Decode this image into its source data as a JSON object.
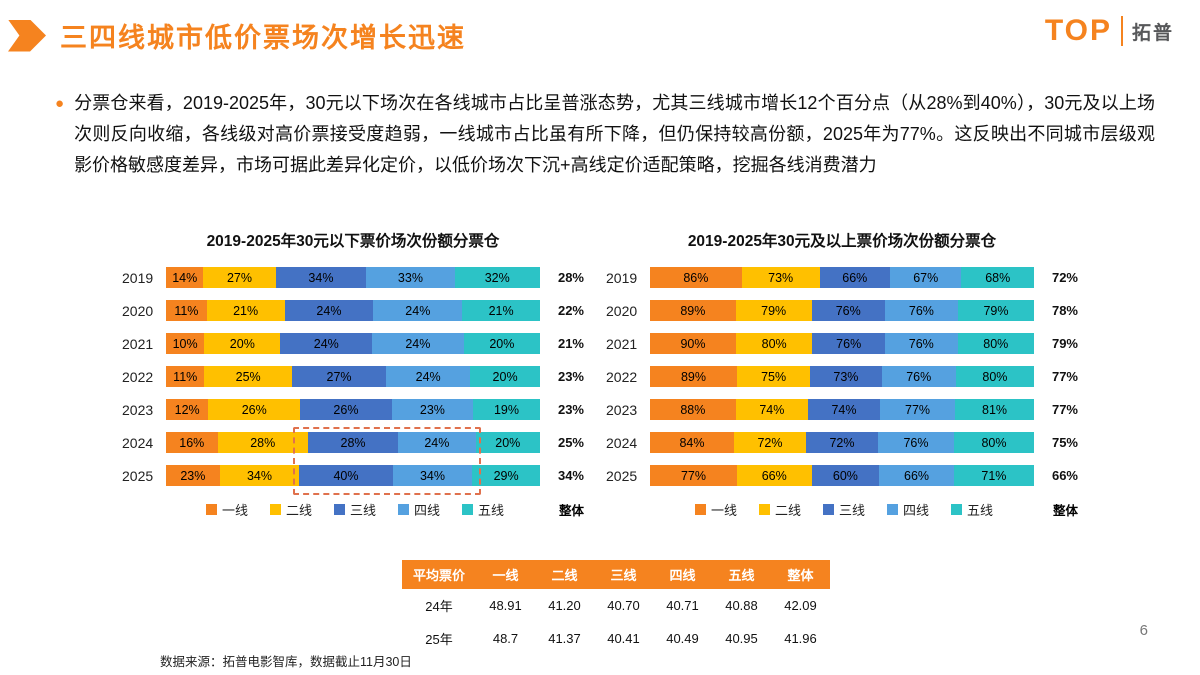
{
  "header": {
    "title": "三四线城市低价票场次增长迅速"
  },
  "logo": {
    "name": "TOP",
    "brand": "拓普"
  },
  "body": {
    "bullet": "●",
    "text": "分票仓来看，2019-2025年，30元以下场次在各线城市占比呈普涨态势，尤其三线城市增长12个百分点（从28%到40%），30元及以上场次则反向收缩，各线级对高价票接受度趋弱，一线城市占比虽有所下降，但仍保持较高份额，2025年为77%。这反映出不同城市层级观影价格敏感度差异，市场可据此差异化定价，以低价场次下沉+高线定价适配策略，挖掘各线消费潜力"
  },
  "chart_data": [
    {
      "type": "bar",
      "subtype": "horizontal-stacked-percent",
      "title": "2019-2025年30元以下票价场次份额分票仓",
      "categories": [
        "2019",
        "2020",
        "2021",
        "2022",
        "2023",
        "2024",
        "2025"
      ],
      "series": [
        {
          "name": "一线",
          "color": "#F5831F",
          "values": [
            14,
            11,
            10,
            11,
            12,
            16,
            23
          ]
        },
        {
          "name": "二线",
          "color": "#FFC000",
          "values": [
            27,
            21,
            20,
            25,
            26,
            28,
            34
          ]
        },
        {
          "name": "三线",
          "color": "#4472C4",
          "values": [
            34,
            24,
            24,
            27,
            26,
            28,
            40
          ]
        },
        {
          "name": "四线",
          "color": "#55A1E0",
          "values": [
            33,
            24,
            24,
            24,
            23,
            24,
            34
          ]
        },
        {
          "name": "五线",
          "color": "#2CC3C6",
          "values": [
            32,
            21,
            20,
            20,
            19,
            20,
            29
          ]
        }
      ],
      "overall_label": "整体",
      "overall": [
        "28%",
        "22%",
        "21%",
        "23%",
        "23%",
        "25%",
        "34%"
      ],
      "value_suffix": "%",
      "legend_position": "bottom",
      "annotation": "dashed-box-highlight-2024-2025-三线"
    },
    {
      "type": "bar",
      "subtype": "horizontal-stacked-percent",
      "title": "2019-2025年30元及以上票价场次份额分票仓",
      "categories": [
        "2019",
        "2020",
        "2021",
        "2022",
        "2023",
        "2024",
        "2025"
      ],
      "series": [
        {
          "name": "一线",
          "color": "#F5831F",
          "values": [
            86,
            89,
            90,
            89,
            88,
            84,
            77
          ]
        },
        {
          "name": "二线",
          "color": "#FFC000",
          "values": [
            73,
            79,
            80,
            75,
            74,
            72,
            66
          ]
        },
        {
          "name": "三线",
          "color": "#4472C4",
          "values": [
            66,
            76,
            76,
            73,
            74,
            72,
            60
          ]
        },
        {
          "name": "四线",
          "color": "#55A1E0",
          "values": [
            67,
            76,
            76,
            76,
            77,
            76,
            66
          ]
        },
        {
          "name": "五线",
          "color": "#2CC3C6",
          "values": [
            68,
            79,
            80,
            80,
            81,
            80,
            71
          ]
        }
      ],
      "overall_label": "整体",
      "overall": [
        "72%",
        "78%",
        "79%",
        "77%",
        "77%",
        "75%",
        "66%"
      ],
      "value_suffix": "%",
      "legend_position": "bottom"
    }
  ],
  "avg_price_table": {
    "headers": [
      "平均票价",
      "一线",
      "二线",
      "三线",
      "四线",
      "五线",
      "整体"
    ],
    "rows": [
      [
        "24年",
        "48.91",
        "41.20",
        "40.70",
        "40.71",
        "40.88",
        "42.09"
      ],
      [
        "25年",
        "48.7",
        "41.37",
        "40.41",
        "40.49",
        "40.95",
        "41.96"
      ]
    ]
  },
  "footer": {
    "source": "数据来源：拓普电影智库，数据截止11月30日",
    "page_number": "6"
  },
  "colors": {
    "accent": "#F5831F",
    "tier1": "#F5831F",
    "tier2": "#FFC000",
    "tier3": "#4472C4",
    "tier4": "#55A1E0",
    "tier5": "#2CC3C6",
    "highlight_dash": "#E0714D"
  }
}
